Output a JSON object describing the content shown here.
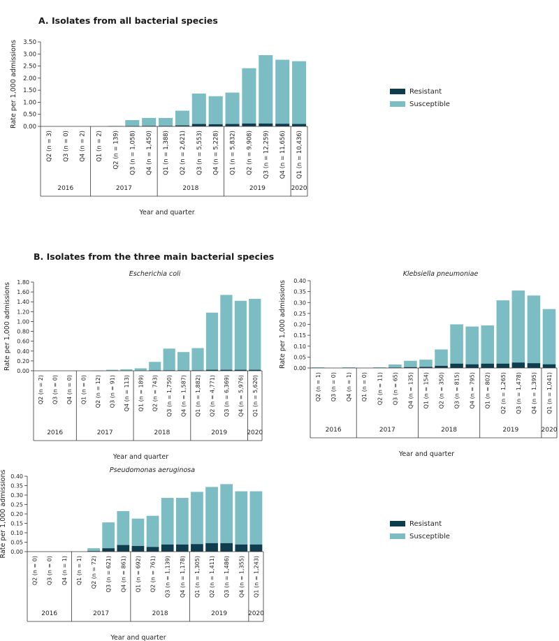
{
  "panel_a_title": "A. Isolates from all bacterial species",
  "panel_b_title": "B. Isolates from the three main bacterial species",
  "legend": {
    "resistant": "Resistant",
    "susceptible": "Susceptible"
  },
  "colors": {
    "resistant": "#0e3d4f",
    "susceptible": "#7bbdc2",
    "axis": "#333333"
  },
  "chart_data": [
    {
      "id": "all",
      "type": "bar",
      "stacked": true,
      "title": "",
      "xlabel": "Year and quarter",
      "ylabel": "Rate per 1,000 admissions",
      "ylim": [
        0,
        3.5
      ],
      "yticks": [
        "0.00",
        "0.50",
        "1.00",
        "1.50",
        "2.00",
        "2.50",
        "3.00",
        "3.50"
      ],
      "categories": [
        "Q2 (n = 3)",
        "Q3 (n = 0)",
        "Q4 (n = 2)",
        "Q1 (n = 2)",
        "Q2 (n = 139)",
        "Q3 (n = 1,058)",
        "Q4 (n = 1,450)",
        "Q1 (n = 1,388)",
        "Q2 (n = 2,621)",
        "Q3 (n = 5,553)",
        "Q4 (n = 5,228)",
        "Q1 (n = 5,832)",
        "Q2 (n = 9,908)",
        "Q3 (n = 12,259)",
        "Q4 (n = 11,656)",
        "Q1 (n = 10,436)"
      ],
      "years": [
        {
          "label": "2016",
          "n": 3
        },
        {
          "label": "2017",
          "n": 4
        },
        {
          "label": "2018",
          "n": 4
        },
        {
          "label": "2019",
          "n": 4
        },
        {
          "label": "2020",
          "n": 1
        }
      ],
      "series": [
        {
          "name": "Resistant",
          "values": [
            0,
            0,
            0,
            0,
            0,
            0.01,
            0.02,
            0.02,
            0.04,
            0.1,
            0.09,
            0.1,
            0.12,
            0.12,
            0.11,
            0.1
          ]
        },
        {
          "name": "Susceptible",
          "values": [
            0,
            0,
            0,
            0,
            0.02,
            0.25,
            0.33,
            0.33,
            0.61,
            1.26,
            1.16,
            1.3,
            2.29,
            2.83,
            2.65,
            2.6
          ]
        }
      ]
    },
    {
      "id": "ecoli",
      "type": "bar",
      "stacked": true,
      "title": "Escherichia coli",
      "xlabel": "Year and quarter",
      "ylabel": "Rate per 1,000 admissions",
      "ylim": [
        0,
        1.8
      ],
      "yticks": [
        "0.00",
        "0.20",
        "0.40",
        "0.60",
        "0.80",
        "1.00",
        "1.20",
        "1.40",
        "1.60",
        "1.80"
      ],
      "categories": [
        "Q2 (n = 2)",
        "Q3 (n = 0)",
        "Q4 (n = 0)",
        "Q1 (n = 0)",
        "Q2 (n = 12)",
        "Q3 (n = 91)",
        "Q4 (n = 113)",
        "Q1 (n = 189)",
        "Q2 (n = 743)",
        "Q3 (n = 1,750)",
        "Q4 (n = 1,587)",
        "Q1 (n = 1,882)",
        "Q2 (n = 4,771)",
        "Q3 (n = 6,369)",
        "Q4 (n = 5,976)",
        "Q1 (n = 5,620)"
      ],
      "years": [
        {
          "label": "2016",
          "n": 3
        },
        {
          "label": "2017",
          "n": 4
        },
        {
          "label": "2018",
          "n": 4
        },
        {
          "label": "2019",
          "n": 4
        },
        {
          "label": "2020",
          "n": 1
        }
      ],
      "series": [
        {
          "name": "Resistant",
          "values": [
            0,
            0,
            0,
            0,
            0,
            0,
            0,
            0,
            0.01,
            0.01,
            0.01,
            0.01,
            0.02,
            0.02,
            0.02,
            0.02
          ]
        },
        {
          "name": "Susceptible",
          "values": [
            0,
            0,
            0,
            0,
            0.005,
            0.02,
            0.03,
            0.05,
            0.17,
            0.44,
            0.37,
            0.45,
            1.16,
            1.52,
            1.4,
            1.44
          ]
        }
      ]
    },
    {
      "id": "kpneu",
      "type": "bar",
      "stacked": true,
      "title": "Klebsiella pneumoniae",
      "xlabel": "Year and quarter",
      "ylabel": "Rate per 1,000 admissions",
      "ylim": [
        0,
        0.4
      ],
      "yticks": [
        "0.00",
        "0.05",
        "0.10",
        "0.15",
        "0.20",
        "0.25",
        "0.30",
        "0.35",
        "0.40"
      ],
      "categories": [
        "Q2 (n = 1)",
        "Q3 (n = 0)",
        "Q4 (n = 1)",
        "Q1 (n = 0)",
        "Q2 (n = 11)",
        "Q3 (n = 65)",
        "Q4 (n = 135)",
        "Q1 (n = 154)",
        "Q2 (n = 350)",
        "Q3 (n = 815)",
        "Q4 (n = 795)",
        "Q1 (n = 802)",
        "Q2 (n = 1,265)",
        "Q3 (n = 1,478)",
        "Q4 (n = 1,395)",
        "Q1 (n = 1,041)"
      ],
      "years": [
        {
          "label": "2016",
          "n": 3
        },
        {
          "label": "2017",
          "n": 4
        },
        {
          "label": "2018",
          "n": 4
        },
        {
          "label": "2019",
          "n": 4
        },
        {
          "label": "2020",
          "n": 1
        }
      ],
      "series": [
        {
          "name": "Resistant",
          "values": [
            0,
            0,
            0,
            0,
            0,
            0.002,
            0.004,
            0.005,
            0.01,
            0.02,
            0.017,
            0.02,
            0.02,
            0.025,
            0.022,
            0.017
          ]
        },
        {
          "name": "Susceptible",
          "values": [
            0.003,
            0,
            0.003,
            0,
            0.003,
            0.014,
            0.029,
            0.033,
            0.075,
            0.18,
            0.173,
            0.175,
            0.29,
            0.33,
            0.31,
            0.253
          ]
        }
      ]
    },
    {
      "id": "paer",
      "type": "bar",
      "stacked": true,
      "title": "Pseudomonas aeruginosa",
      "xlabel": "Year and quarter",
      "ylabel": "Rate per 1,000 admissions",
      "ylim": [
        0,
        0.4
      ],
      "yticks": [
        "0.00",
        "0.05",
        "0.10",
        "0.15",
        "0.20",
        "0.25",
        "0.30",
        "0.35",
        "0.40"
      ],
      "categories": [
        "Q2 (n = 0)",
        "Q3 (n = 0)",
        "Q4 (n = 1)",
        "Q1 (n = 1)",
        "Q2 (n = 72)",
        "Q3 (n = 621)",
        "Q4 (n = 861)",
        "Q1 (n = 692)",
        "Q2 (n = 761)",
        "Q3 (n = 1,139)",
        "Q4 (n = 1,178)",
        "Q1 (n = 1,305)",
        "Q2 (n = 1,411)",
        "Q3 (n = 1,486)",
        "Q4 (n = 1,355)",
        "Q1 (n = 1,243)"
      ],
      "years": [
        {
          "label": "2016",
          "n": 3
        },
        {
          "label": "2017",
          "n": 4
        },
        {
          "label": "2018",
          "n": 4
        },
        {
          "label": "2019",
          "n": 4
        },
        {
          "label": "2020",
          "n": 1
        }
      ],
      "series": [
        {
          "name": "Resistant",
          "values": [
            0,
            0,
            0,
            0,
            0.003,
            0.018,
            0.035,
            0.03,
            0.025,
            0.038,
            0.038,
            0.04,
            0.045,
            0.045,
            0.038,
            0.038
          ]
        },
        {
          "name": "Susceptible",
          "values": [
            0,
            0,
            0,
            0,
            0.015,
            0.137,
            0.18,
            0.145,
            0.165,
            0.247,
            0.247,
            0.277,
            0.298,
            0.313,
            0.282,
            0.282
          ]
        }
      ]
    }
  ]
}
